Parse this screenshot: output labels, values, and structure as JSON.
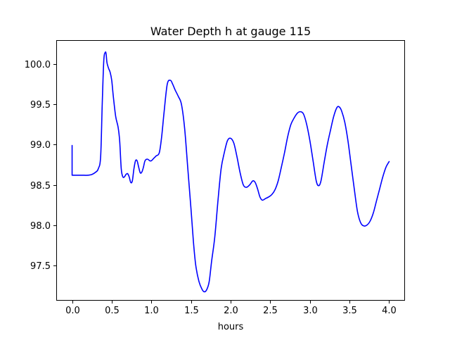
{
  "chart_data": {
    "type": "line",
    "title": "Water Depth h at gauge 115",
    "xlabel": "hours",
    "ylabel": "",
    "xlim": [
      -0.2,
      4.2
    ],
    "ylim": [
      97.06,
      100.3
    ],
    "xticks": [
      0.0,
      0.5,
      1.0,
      1.5,
      2.0,
      2.5,
      3.0,
      3.5,
      4.0
    ],
    "xtick_labels": [
      "0.0",
      "0.5",
      "1.0",
      "1.5",
      "2.0",
      "2.5",
      "3.0",
      "3.5",
      "4.0"
    ],
    "yticks": [
      97.5,
      98.0,
      98.5,
      99.0,
      99.5,
      100.0
    ],
    "ytick_labels": [
      "97.5",
      "98.0",
      "98.5",
      "99.0",
      "99.5",
      "100.0"
    ],
    "grid": false,
    "legend": "none",
    "series": [
      {
        "color": "#0000ff",
        "x": [
          0.0,
          0.0,
          0.05,
          0.1,
          0.15,
          0.2,
          0.25,
          0.3,
          0.33,
          0.36,
          0.38,
          0.4,
          0.42,
          0.43,
          0.44,
          0.46,
          0.48,
          0.5,
          0.52,
          0.55,
          0.58,
          0.6,
          0.62,
          0.64,
          0.66,
          0.68,
          0.7,
          0.72,
          0.74,
          0.76,
          0.78,
          0.8,
          0.82,
          0.84,
          0.86,
          0.88,
          0.9,
          0.92,
          0.95,
          0.98,
          1.0,
          1.03,
          1.06,
          1.1,
          1.13,
          1.16,
          1.2,
          1.24,
          1.27,
          1.3,
          1.34,
          1.38,
          1.42,
          1.46,
          1.5,
          1.53,
          1.56,
          1.6,
          1.64,
          1.67,
          1.7,
          1.73,
          1.76,
          1.8,
          1.84,
          1.88,
          1.92,
          1.96,
          2.0,
          2.04,
          2.08,
          2.12,
          2.16,
          2.2,
          2.24,
          2.28,
          2.31,
          2.34,
          2.37,
          2.4,
          2.44,
          2.48,
          2.52,
          2.56,
          2.6,
          2.64,
          2.68,
          2.72,
          2.76,
          2.8,
          2.84,
          2.88,
          2.92,
          2.96,
          3.0,
          3.04,
          3.08,
          3.11,
          3.14,
          3.18,
          3.22,
          3.26,
          3.3,
          3.34,
          3.37,
          3.4,
          3.44,
          3.48,
          3.52,
          3.56,
          3.6,
          3.64,
          3.68,
          3.72,
          3.76,
          3.8,
          3.84,
          3.88,
          3.92,
          3.96,
          4.0
        ],
        "y": [
          98.99,
          98.62,
          98.62,
          98.62,
          98.62,
          98.62,
          98.63,
          98.66,
          98.7,
          98.85,
          99.5,
          100.05,
          100.15,
          100.12,
          100.02,
          99.95,
          99.9,
          99.8,
          99.6,
          99.35,
          99.22,
          99.05,
          98.7,
          98.6,
          98.6,
          98.63,
          98.64,
          98.6,
          98.53,
          98.55,
          98.7,
          98.8,
          98.8,
          98.72,
          98.65,
          98.66,
          98.72,
          98.8,
          98.82,
          98.8,
          98.8,
          98.83,
          98.86,
          98.9,
          99.1,
          99.4,
          99.75,
          99.8,
          99.75,
          99.68,
          99.6,
          99.5,
          99.2,
          98.7,
          98.2,
          97.8,
          97.5,
          97.3,
          97.2,
          97.17,
          97.2,
          97.3,
          97.55,
          97.85,
          98.3,
          98.7,
          98.9,
          99.05,
          99.08,
          99.02,
          98.85,
          98.65,
          98.5,
          98.47,
          98.5,
          98.55,
          98.53,
          98.45,
          98.35,
          98.31,
          98.33,
          98.35,
          98.38,
          98.44,
          98.55,
          98.72,
          98.9,
          99.1,
          99.25,
          99.33,
          99.39,
          99.41,
          99.38,
          99.25,
          99.05,
          98.8,
          98.55,
          98.49,
          98.55,
          98.78,
          99.0,
          99.18,
          99.35,
          99.46,
          99.47,
          99.42,
          99.28,
          99.05,
          98.75,
          98.45,
          98.17,
          98.03,
          97.99,
          98.0,
          98.05,
          98.15,
          98.3,
          98.45,
          98.6,
          98.72,
          98.79
        ]
      }
    ]
  }
}
